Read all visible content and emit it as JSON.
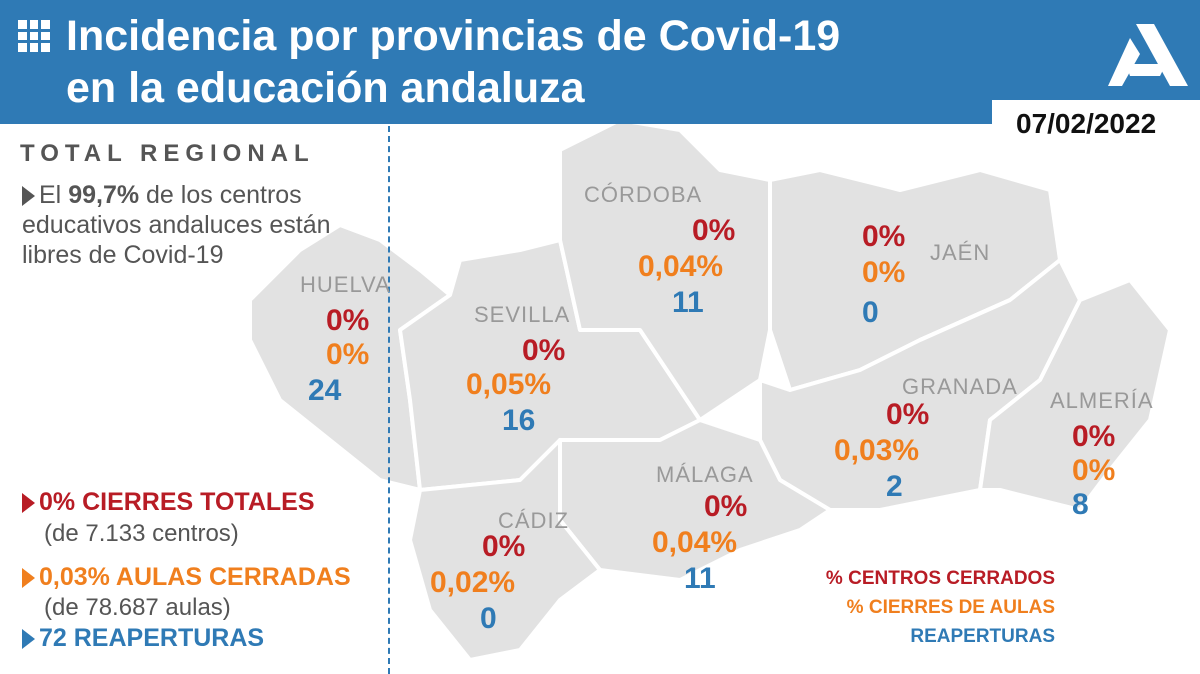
{
  "header": {
    "title_line1": "Incidencia por provincias de Covid-19",
    "title_line2": "en la educación andaluza",
    "date": "07/02/2022",
    "icon": "grid-icon",
    "logo": "junta-andalucia-logo"
  },
  "regional": {
    "title": "TOTAL REGIONAL",
    "summary_prefix": "El",
    "summary_value": "99,7%",
    "summary_rest": "de los centros educativos andaluces están libres de Covid-19",
    "cierres_totales": "0% CIERRES TOTALES",
    "cierres_totales_sub": "(de 7.133 centros)",
    "aulas_cerradas": "0,03% AULAS CERRADAS",
    "aulas_cerradas_sub": "(de 78.687 aulas)",
    "reaperturas": "72 REAPERTURAS"
  },
  "provinces": [
    {
      "name": "HUELVA",
      "centros": "0%",
      "aulas": "0%",
      "reaperturas": "24"
    },
    {
      "name": "SEVILLA",
      "centros": "0%",
      "aulas": "0,05%",
      "reaperturas": "16"
    },
    {
      "name": "CÓRDOBA",
      "centros": "0%",
      "aulas": "0,04%",
      "reaperturas": "11"
    },
    {
      "name": "JAÉN",
      "centros": "0%",
      "aulas": "0%",
      "reaperturas": "0"
    },
    {
      "name": "GRANADA",
      "centros": "0%",
      "aulas": "0,03%",
      "reaperturas": "2"
    },
    {
      "name": "ALMERÍA",
      "centros": "0%",
      "aulas": "0%",
      "reaperturas": "8"
    },
    {
      "name": "MÁLAGA",
      "centros": "0%",
      "aulas": "0,04%",
      "reaperturas": "11"
    },
    {
      "name": "CÁDIZ",
      "centros": "0%",
      "aulas": "0,02%",
      "reaperturas": "0"
    }
  ],
  "key": {
    "centros": "% CENTROS CERRADOS",
    "aulas": "% CIERRES DE AULAS",
    "reaperturas": "REAPERTURAS"
  },
  "colors": {
    "header": "#2f7ab5",
    "red": "#b81c25",
    "orange": "#f07f1e",
    "blue": "#2f7ab5",
    "map": "#e2e2e2"
  }
}
